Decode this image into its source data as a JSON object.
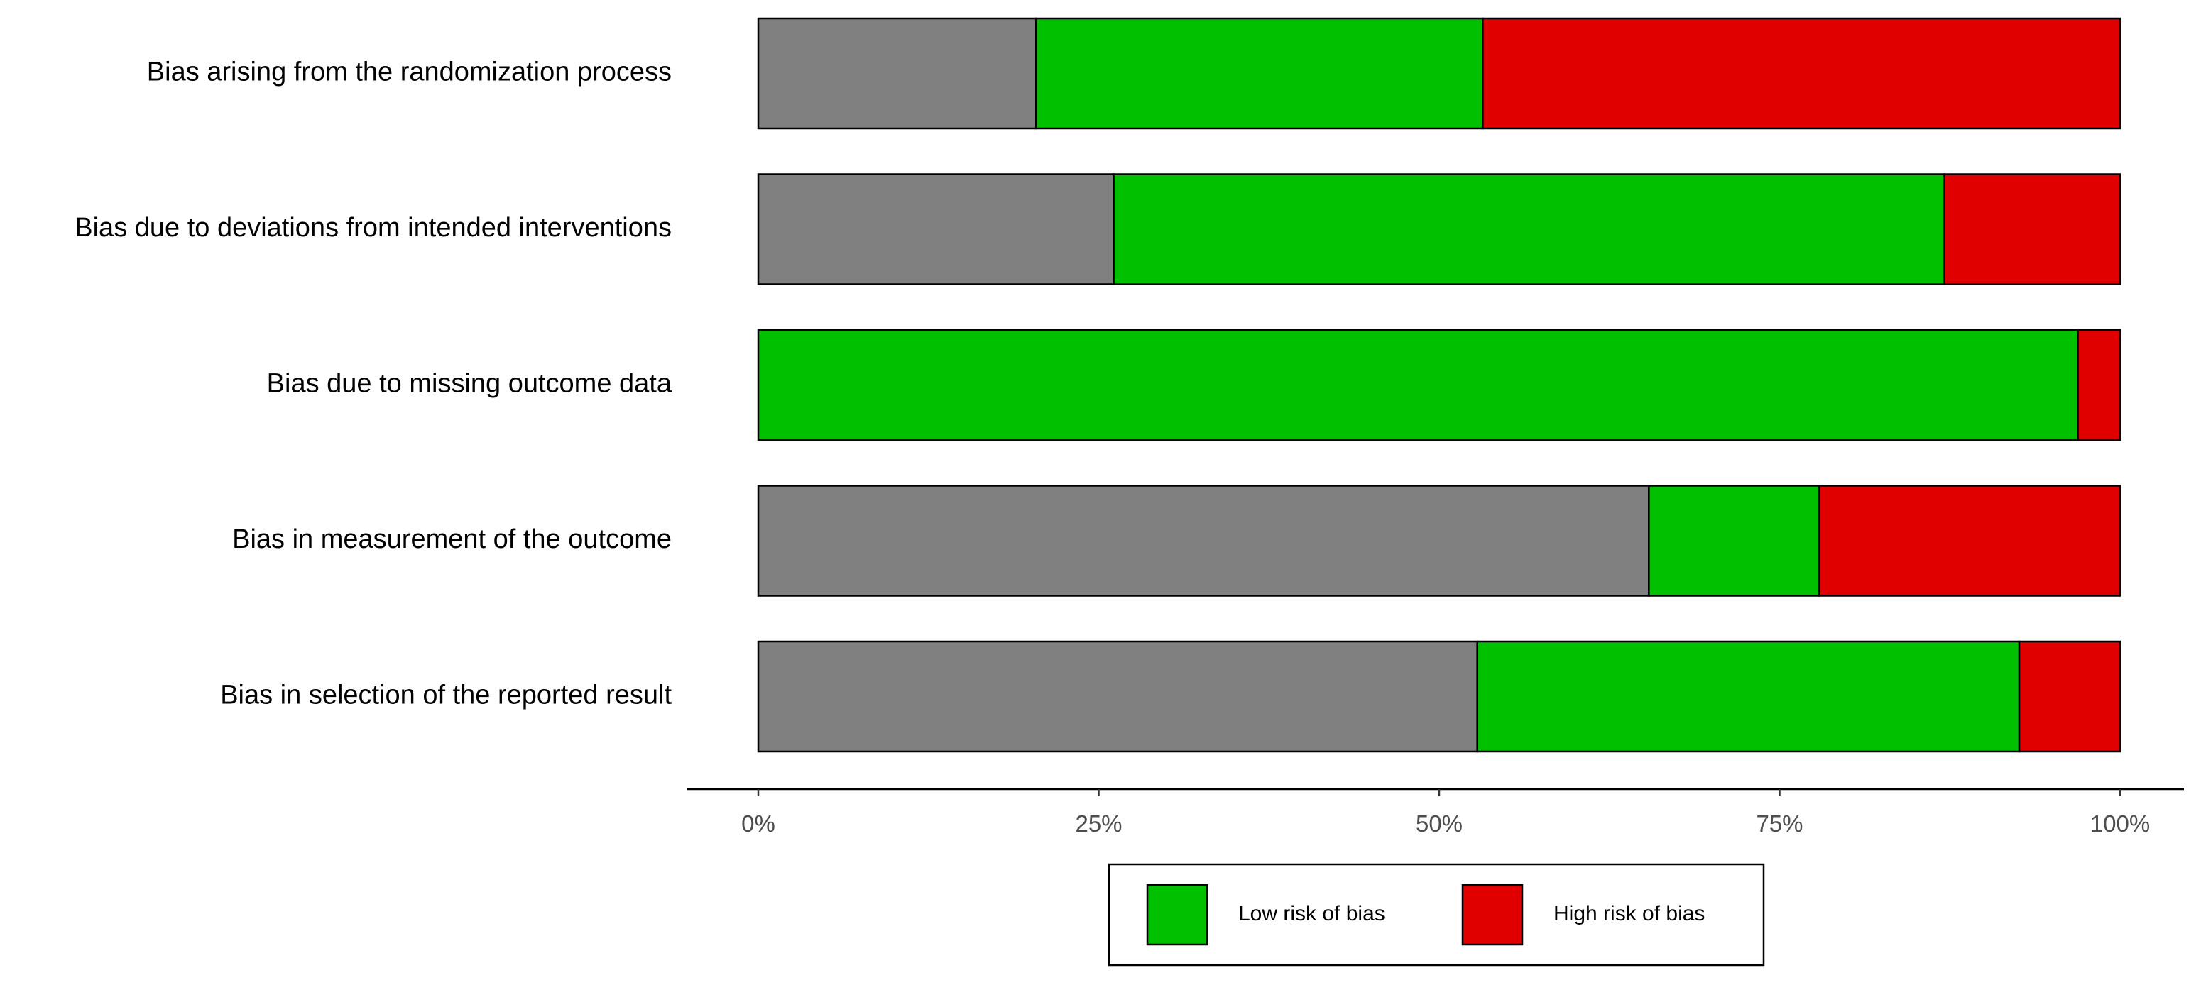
{
  "chart_data": {
    "type": "bar",
    "orientation": "horizontal",
    "stacked": true,
    "categories": [
      "Bias arising from the randomization process",
      "Bias due to deviations from intended interventions",
      "Bias due to missing outcome data",
      "Bias in measurement of the outcome",
      "Bias in selection of the reported result"
    ],
    "series": [
      {
        "key": "unclear",
        "color": "#808080",
        "values": [
          20.4,
          26.1,
          0,
          65.4,
          52.8
        ]
      },
      {
        "key": "low",
        "name": "Low risk of bias",
        "color": "#00c000",
        "values": [
          32.8,
          61.0,
          96.9,
          12.5,
          39.8
        ]
      },
      {
        "key": "high",
        "name": "High risk of bias",
        "color": "#e00000",
        "values": [
          46.8,
          12.9,
          3.1,
          22.1,
          7.4
        ]
      }
    ],
    "xlim": [
      0,
      100
    ],
    "xticks": [
      0,
      25,
      50,
      75,
      100
    ],
    "xtick_labels": [
      "0%",
      "25%",
      "50%",
      "75%",
      "100%"
    ],
    "grid": false,
    "legend_position": "bottom"
  }
}
